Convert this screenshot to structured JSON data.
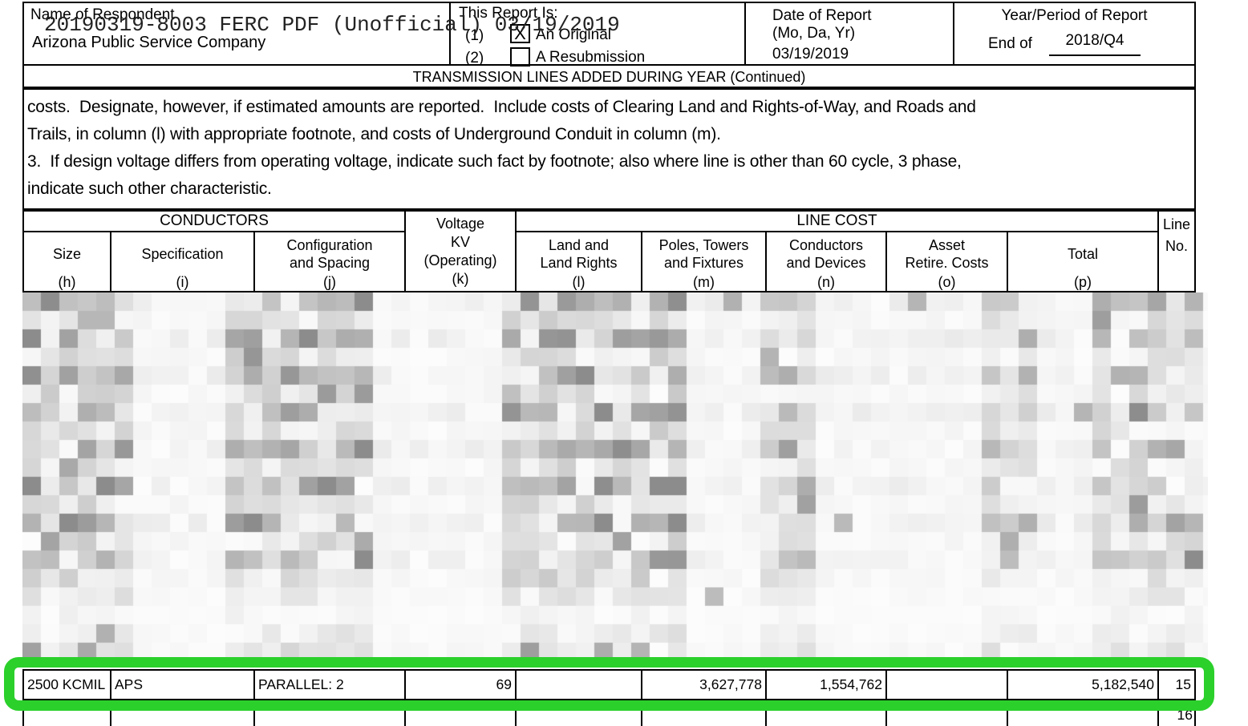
{
  "document": {
    "watermark": "20190319-8003 FERC PDF (Unofficial) 03/19/2019",
    "respondent": {
      "label": "Name of Respondent",
      "name": "Arizona Public Service Company"
    },
    "report_type": {
      "label": "This Report Is:",
      "option1_num": "(1)",
      "option1_label": "An Original",
      "option1_mark": "X",
      "option2_num": "(2)",
      "option2_label": "A Resubmission"
    },
    "date_of_report": {
      "label_line1": "Date of Report",
      "label_line2": "(Mo, Da, Yr)",
      "value": "03/19/2019"
    },
    "year_period": {
      "label": "Year/Period of Report",
      "prefix": "End of",
      "value": "2018/Q4"
    },
    "section_title": "TRANSMISSION LINES ADDED DURING YEAR (Continued)",
    "instructions": {
      "line1": "costs.  Designate, however, if estimated amounts are reported.  Include costs of Clearing Land and Rights-of-Way, and Roads and",
      "line2": "Trails, in column (l) with appropriate footnote, and costs of Underground Conduit in column (m).",
      "line3": "3.  If design voltage differs from operating voltage, indicate such fact by footnote; also where line is other than 60 cycle, 3 phase,",
      "line4": "indicate such other characteristic."
    }
  },
  "table": {
    "groups": {
      "conductors": "CONDUCTORS",
      "line_cost": "LINE COST",
      "line_no_l1": "Line",
      "line_no_l2": "No."
    },
    "columns": {
      "size": {
        "l1": "Size",
        "sub": "(h)"
      },
      "specification": {
        "l1": "Specification",
        "sub": "(i)"
      },
      "configuration": {
        "l1": "Configuration",
        "l2": "and Spacing",
        "sub": "(j)"
      },
      "voltage": {
        "l1": "Voltage",
        "l2": "KV",
        "l3": "(Operating)",
        "sub": "(k)"
      },
      "land": {
        "l1": "Land and",
        "l2": "Land Rights",
        "sub": "(l)"
      },
      "poles": {
        "l1": "Poles, Towers",
        "l2": "and Fixtures",
        "sub": "(m)"
      },
      "conductors": {
        "l1": "Conductors",
        "l2": "and Devices",
        "sub": "(n)"
      },
      "asset": {
        "l1": "Asset",
        "l2": "Retire. Costs",
        "sub": "(o)"
      },
      "total": {
        "l1": "Total",
        "sub": "(p)"
      }
    },
    "highlighted_row": {
      "size": "2500 KCMIL",
      "specification": "APS",
      "configuration": "PARALLEL: 2",
      "voltage": "69",
      "land": "",
      "poles": "3,627,778",
      "conductors": "1,554,762",
      "asset": "",
      "total": "5,182,540",
      "line_no": "15"
    },
    "next_line_no": "16"
  },
  "colors": {
    "highlight_green": "#2bd02b"
  },
  "redaction": {
    "style": "pixelated-mosaic"
  }
}
